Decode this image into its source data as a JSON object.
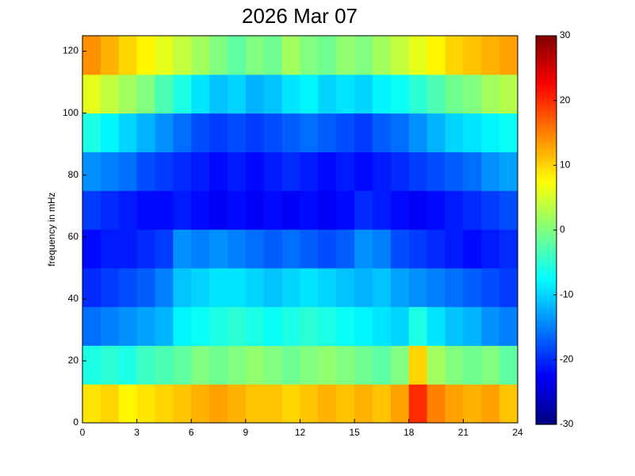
{
  "chart_data": {
    "type": "heatmap",
    "title": "2026 Mar 07",
    "ylabel": "frequency in mHz",
    "colormap": "jet",
    "x": [
      0,
      1,
      2,
      3,
      4,
      5,
      6,
      7,
      8,
      9,
      10,
      11,
      12,
      13,
      14,
      15,
      16,
      17,
      18,
      19,
      20,
      21,
      22,
      23,
      24
    ],
    "y": [
      0,
      12.5,
      25,
      37.5,
      50,
      62.5,
      75,
      87.5,
      100,
      112.5,
      125
    ],
    "xlim": [
      0,
      24
    ],
    "xticks": [
      0,
      3,
      6,
      9,
      12,
      15,
      18,
      21,
      24
    ],
    "ylim": [
      0,
      125
    ],
    "yticks": [
      0,
      20,
      40,
      60,
      80,
      100,
      120
    ],
    "clim": [
      -30,
      30
    ],
    "cticks": [
      -30,
      -20,
      -10,
      0,
      10,
      20,
      30
    ],
    "z": [
      [
        9,
        10,
        8,
        9,
        10,
        11,
        12,
        13,
        12,
        11,
        11,
        10,
        11,
        12,
        11,
        12,
        11,
        13,
        20,
        15,
        13,
        12,
        13,
        11
      ],
      [
        -6,
        -5,
        -6,
        -4,
        -3,
        -2,
        0,
        -1,
        0,
        1,
        0,
        -1,
        0,
        1,
        0,
        -1,
        -2,
        0,
        10,
        2,
        0,
        -1,
        0,
        -2
      ],
      [
        -16,
        -15,
        -14,
        -13,
        -12,
        -8,
        -7,
        -6,
        -5,
        -6,
        -7,
        -6,
        -5,
        -6,
        -7,
        -8,
        -9,
        -10,
        -6,
        -9,
        -11,
        -12,
        -14,
        -15
      ],
      [
        -20,
        -19,
        -18,
        -17,
        -15,
        -11,
        -10,
        -9,
        -9,
        -10,
        -11,
        -10,
        -9,
        -10,
        -11,
        -12,
        -11,
        -13,
        -14,
        -15,
        -16,
        -17,
        -18,
        -19
      ],
      [
        -22,
        -21,
        -21,
        -20,
        -19,
        -14,
        -15,
        -14,
        -15,
        -16,
        -17,
        -16,
        -17,
        -18,
        -17,
        -14,
        -15,
        -18,
        -19,
        -20,
        -21,
        -22,
        -21,
        -20
      ],
      [
        -19,
        -20,
        -21,
        -22,
        -22,
        -21,
        -22,
        -23,
        -22,
        -23,
        -22,
        -23,
        -22,
        -23,
        -22,
        -20,
        -21,
        -22,
        -23,
        -22,
        -21,
        -20,
        -19,
        -18
      ],
      [
        -14,
        -15,
        -16,
        -18,
        -19,
        -20,
        -21,
        -22,
        -21,
        -22,
        -21,
        -20,
        -21,
        -22,
        -21,
        -22,
        -21,
        -20,
        -19,
        -18,
        -17,
        -16,
        -14,
        -13
      ],
      [
        -6,
        -8,
        -10,
        -12,
        -14,
        -16,
        -18,
        -19,
        -18,
        -19,
        -18,
        -17,
        -16,
        -17,
        -18,
        -19,
        -17,
        -16,
        -14,
        -12,
        -10,
        -9,
        -8,
        -7
      ],
      [
        6,
        4,
        2,
        0,
        -3,
        -6,
        -9,
        -11,
        -10,
        -12,
        -11,
        -9,
        -8,
        -10,
        -9,
        -10,
        -8,
        -7,
        -5,
        -3,
        -1,
        0,
        2,
        3
      ],
      [
        14,
        12,
        10,
        8,
        6,
        4,
        2,
        0,
        -2,
        0,
        -1,
        2,
        0,
        -1,
        1,
        0,
        2,
        4,
        6,
        8,
        10,
        11,
        12,
        13
      ]
    ]
  }
}
